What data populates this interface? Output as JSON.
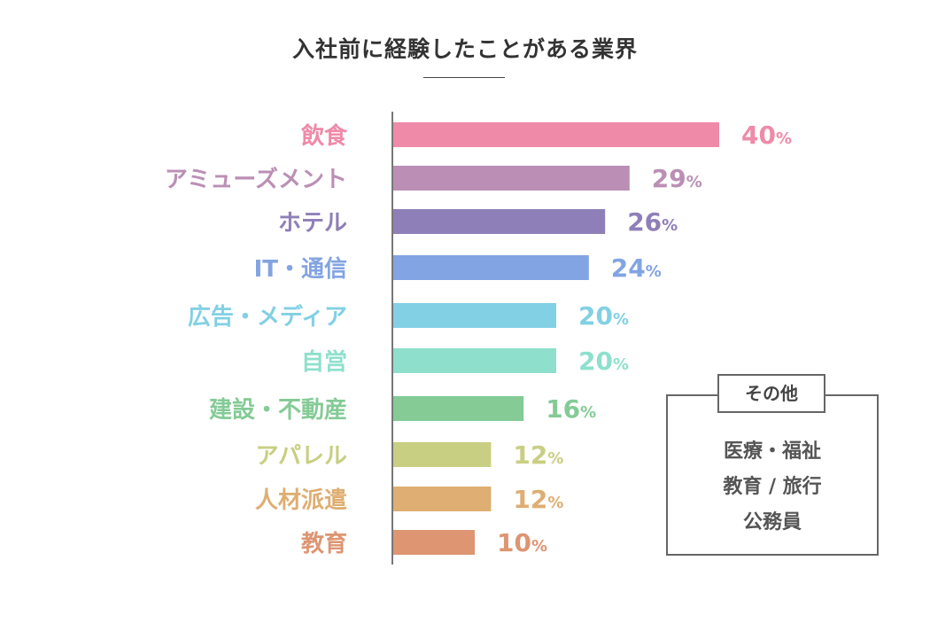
{
  "title": "入社前に経験したことがある業界",
  "other": {
    "title": "その他",
    "items": [
      "医療・福祉",
      "教育 / 旅行",
      "公務員"
    ]
  },
  "chart_data": {
    "type": "bar",
    "orientation": "horizontal",
    "title": "入社前に経験したことがある業界",
    "categories": [
      "飲食",
      "アミューズメント",
      "ホテル",
      "IT・通信",
      "広告・メディア",
      "自営",
      "建設・不動産",
      "アパレル",
      "人材派遣",
      "教育"
    ],
    "values": [
      40,
      29,
      26,
      24,
      20,
      20,
      16,
      12,
      12,
      10
    ],
    "unit": "%",
    "colors": [
      "#ef8aa8",
      "#bb8fb5",
      "#8f7fb8",
      "#82a4e2",
      "#82d0e4",
      "#8ee0cd",
      "#84cb96",
      "#c9cf82",
      "#deae72",
      "#dd9572"
    ],
    "xlim": [
      0,
      40
    ],
    "grid": false,
    "legend": "none"
  }
}
